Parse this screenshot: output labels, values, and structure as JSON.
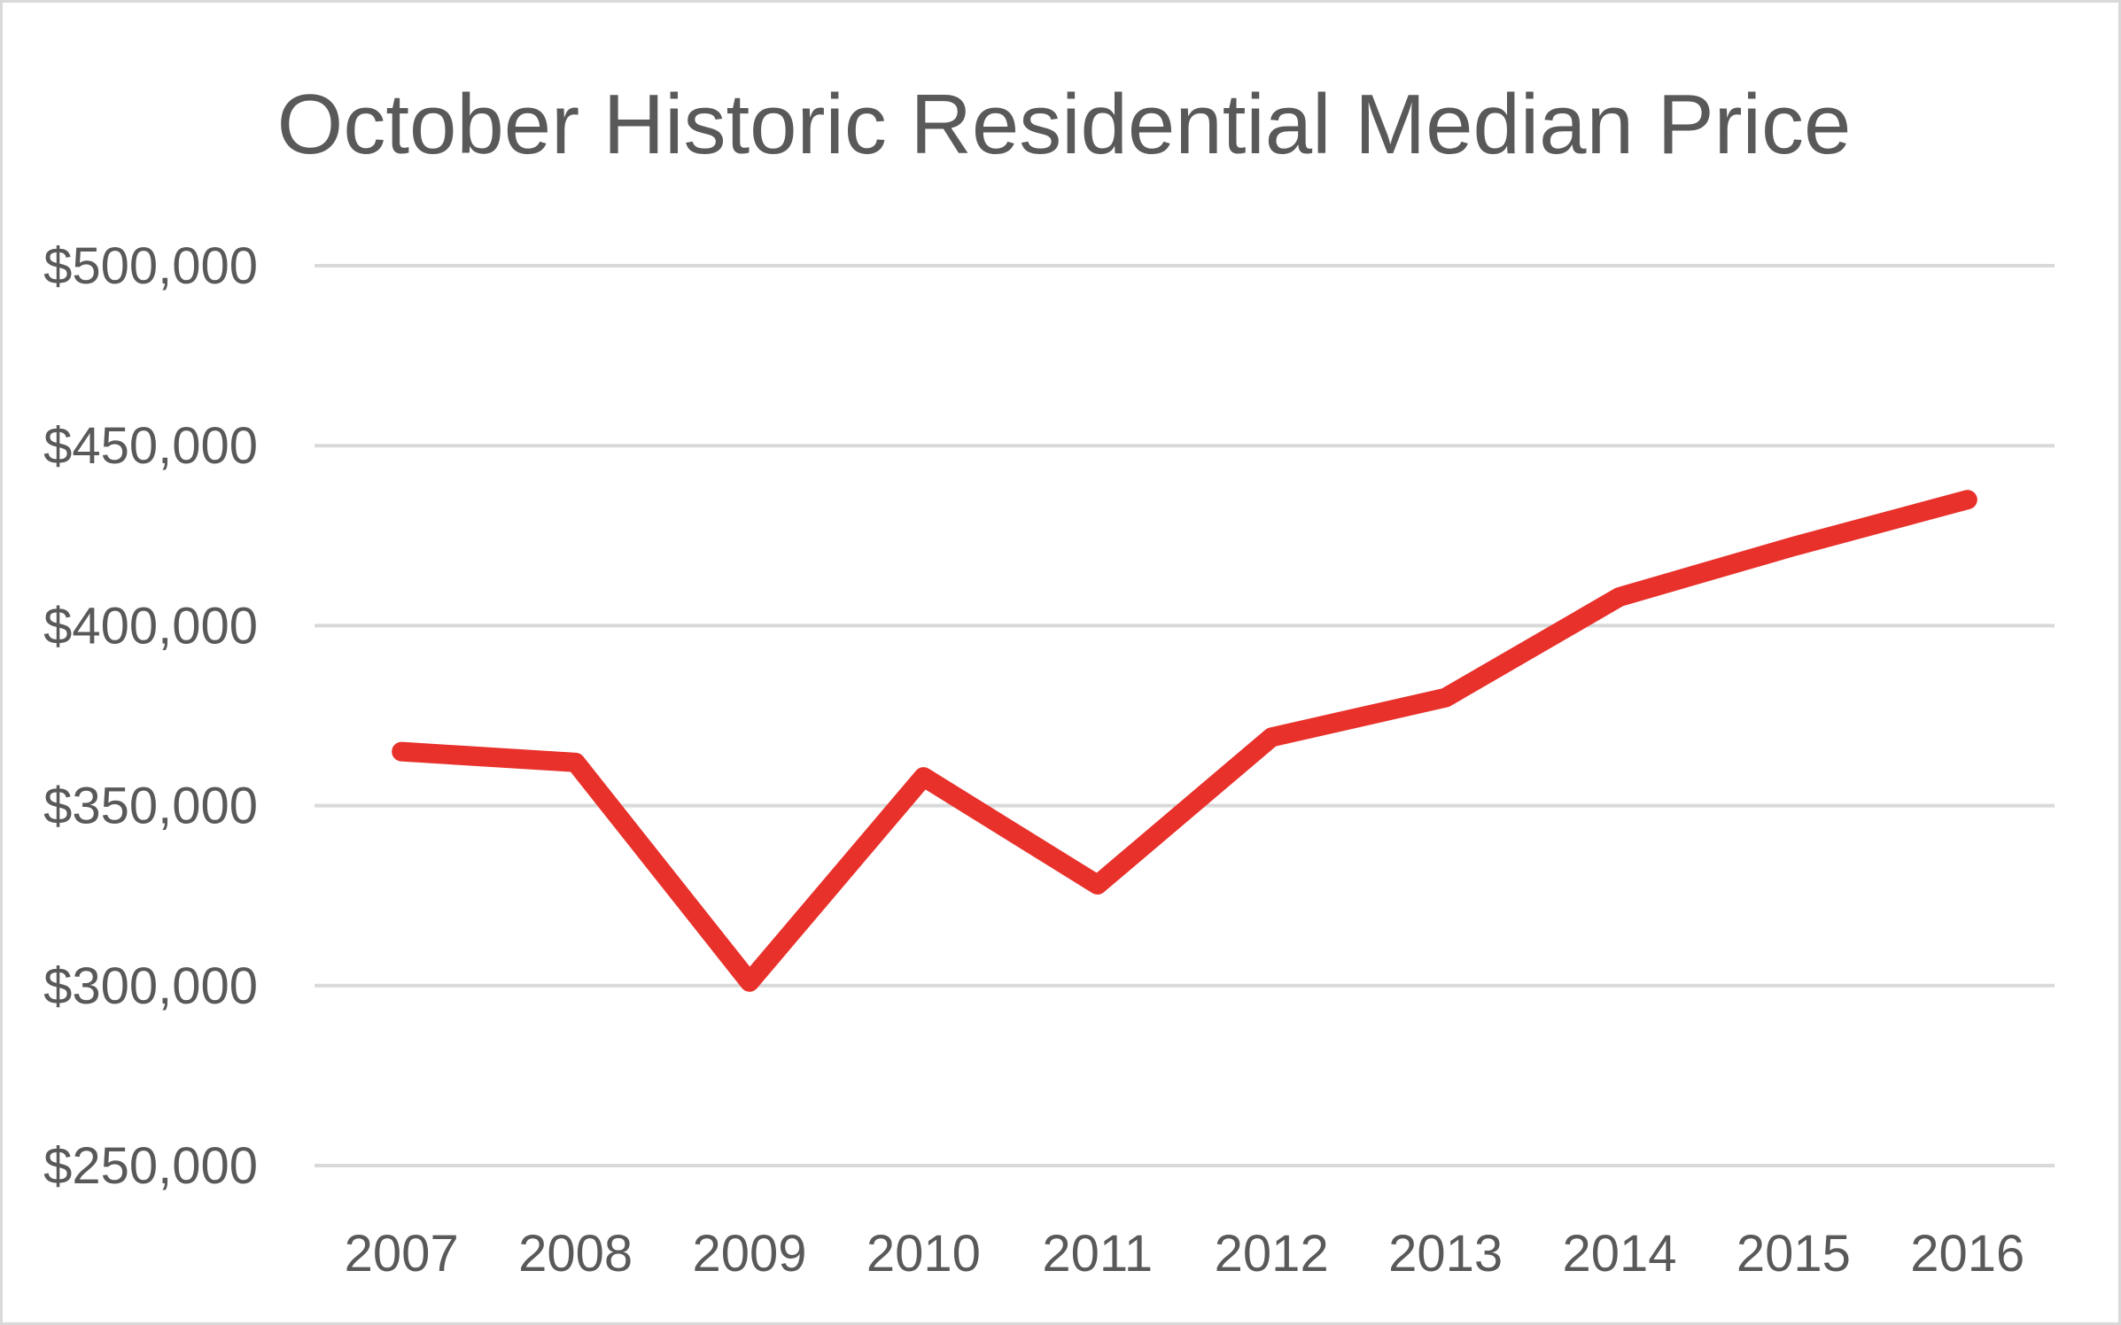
{
  "chart_data": {
    "type": "line",
    "title": "October Historic Residential Median Price",
    "xlabel": "",
    "ylabel": "",
    "categories": [
      "2007",
      "2008",
      "2009",
      "2010",
      "2011",
      "2012",
      "2013",
      "2014",
      "2015",
      "2016"
    ],
    "series": [
      {
        "values": [
          365000,
          362000,
          301000,
          358000,
          328000,
          369000,
          380000,
          408000,
          422000,
          435000
        ],
        "color": "#e8312b"
      }
    ],
    "ylim": [
      250000,
      500000
    ],
    "yticks": [
      250000,
      300000,
      350000,
      400000,
      450000,
      500000
    ],
    "ytick_labels": [
      "$250,000",
      "$300,000",
      "$350,000",
      "$400,000",
      "$450,000",
      "$500,000"
    ],
    "grid": true,
    "legend": "none",
    "colors": {
      "line": "#e8312b",
      "grid": "#d9d9d9",
      "text": "#595959",
      "border": "#d9d9d9"
    }
  }
}
